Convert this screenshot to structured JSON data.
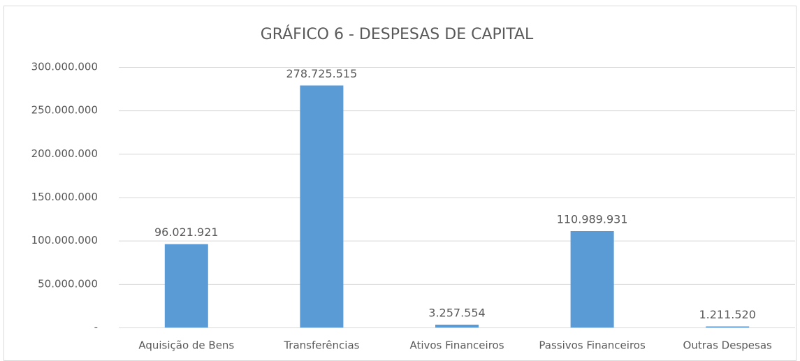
{
  "chart_data": {
    "type": "bar",
    "title": "GRÁFICO 6 - DESPESAS DE CAPITAL",
    "categories": [
      "Aquisição de Bens",
      "Transferências",
      "Ativos Financeiros",
      "Passivos Financeiros",
      "Outras Despesas"
    ],
    "values": [
      96021921,
      278725515,
      3257554,
      110989931,
      1211520
    ],
    "value_labels": [
      "96.021.921",
      "278.725.515",
      "3.257.554",
      "110.989.931",
      "1.211.520"
    ],
    "color": "#5b9bd5",
    "ylim": [
      0,
      300000000
    ],
    "yticks": [
      {
        "value": 0,
        "label": "-"
      },
      {
        "value": 50000000,
        "label": "50.000.000"
      },
      {
        "value": 100000000,
        "label": "100.000.000"
      },
      {
        "value": 150000000,
        "label": "150.000.000"
      },
      {
        "value": 200000000,
        "label": "200.000.000"
      },
      {
        "value": 250000000,
        "label": "250.000.000"
      },
      {
        "value": 300000000,
        "label": "300.000.000"
      }
    ],
    "grid": true
  }
}
